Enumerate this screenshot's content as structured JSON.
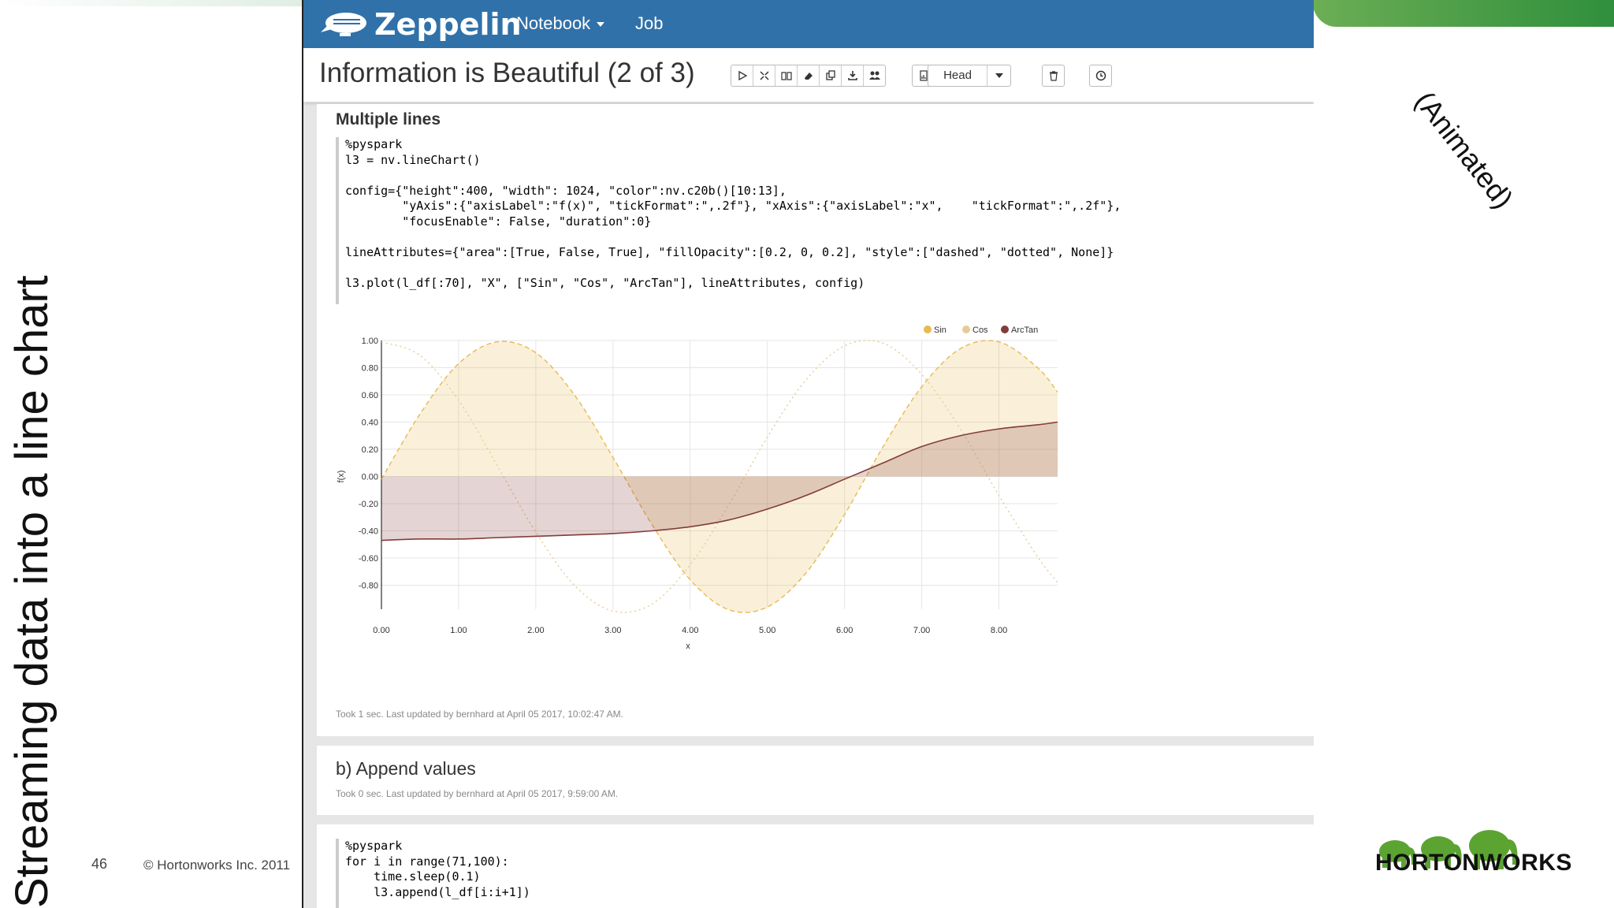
{
  "slide": {
    "vertical_title": "Streaming data into a line chart",
    "note": "(Animated)",
    "slide_number": "46",
    "copyright": "© Hortonworks Inc. 2011",
    "logo_text": "HORTONWORKS"
  },
  "app": {
    "brand": "Zeppelin",
    "nav": {
      "notebook": "Notebook",
      "job": "Job"
    },
    "notebook_title": "Information is Beautiful (2 of 3)",
    "head_select": "Head",
    "icons": [
      "play-icon",
      "hide-code-icon",
      "book-icon",
      "eraser-icon",
      "clone-icon",
      "download-icon",
      "users-icon",
      "report-icon",
      "dot-icon",
      "trash-icon",
      "clock-icon"
    ]
  },
  "para1": {
    "title": "Multiple lines",
    "code": [
      "%pyspark",
      "l3 = nv.lineChart()",
      "",
      "config={\"height\":400, \"width\": 1024, \"color\":nv.c20b()[10:13],",
      "        \"yAxis\":{\"axisLabel\":\"f(x)\", \"tickFormat\":\",.2f\"}, \"xAxis\":{\"axisLabel\":\"x\",    \"tickFormat\":\",.2f\"},",
      "        \"focusEnable\": False, \"duration\":0}",
      "",
      "lineAttributes={\"area\":[True, False, True], \"fillOpacity\":[0.2, 0, 0.2], \"style\":[\"dashed\", \"dotted\", None]}",
      "",
      "l3.plot(l_df[:70], \"X\", [\"Sin\", \"Cos\", \"ArcTan\"], lineAttributes, config)"
    ],
    "footer": "Took 1 sec. Last updated by bernhard at April 05 2017, 10:02:47 AM."
  },
  "para2": {
    "title": "b) Append values",
    "footer": "Took 0 sec. Last updated by bernhard at April 05 2017, 9:59:00 AM."
  },
  "para3": {
    "code": [
      "%pyspark",
      "for i in range(71,100):",
      "    time.sleep(0.1)",
      "    l3.append(l_df[i:i+1])"
    ]
  },
  "chart_data": {
    "type": "line",
    "title": "",
    "xlabel": "x",
    "ylabel": "f(x)",
    "xlim": [
      0,
      8.76
    ],
    "ylim": [
      -1,
      1
    ],
    "x_ticks": [
      "0.00",
      "1.00",
      "2.00",
      "3.00",
      "4.00",
      "5.00",
      "6.00",
      "7.00",
      "8.00"
    ],
    "y_ticks": [
      "1.00",
      "0.80",
      "0.60",
      "0.40",
      "0.20",
      "0.00",
      "-0.20",
      "-0.40",
      "-0.60",
      "-0.80"
    ],
    "legend_position": "top-right",
    "x": [
      0.0,
      0.5,
      1.0,
      1.5,
      2.0,
      2.5,
      3.0,
      3.5,
      4.0,
      4.5,
      5.0,
      5.5,
      6.0,
      6.5,
      7.0,
      7.5,
      8.0,
      8.5,
      8.76
    ],
    "series": [
      {
        "name": "Sin",
        "color": "#e7ba52",
        "style": "dashed",
        "area": true,
        "values": [
          -0.02,
          0.46,
          0.83,
          0.99,
          0.91,
          0.6,
          0.14,
          -0.35,
          -0.76,
          -0.98,
          -0.96,
          -0.71,
          -0.28,
          0.22,
          0.66,
          0.94,
          0.99,
          0.8,
          0.62
        ]
      },
      {
        "name": "Cos",
        "color": "#e7cb94",
        "style": "dotted",
        "area": false,
        "values": [
          0.99,
          0.89,
          0.56,
          0.08,
          -0.41,
          -0.8,
          -0.99,
          -0.94,
          -0.65,
          -0.21,
          0.29,
          0.71,
          0.96,
          0.98,
          0.75,
          0.35,
          -0.14,
          -0.59,
          -0.78
        ]
      },
      {
        "name": "ArcTan",
        "color": "#843c39",
        "style": "solid",
        "area": true,
        "values": [
          -0.47,
          -0.46,
          -0.46,
          -0.45,
          -0.44,
          -0.43,
          -0.42,
          -0.4,
          -0.37,
          -0.32,
          -0.24,
          -0.14,
          -0.02,
          0.1,
          0.22,
          0.3,
          0.35,
          0.38,
          0.4
        ]
      }
    ]
  }
}
